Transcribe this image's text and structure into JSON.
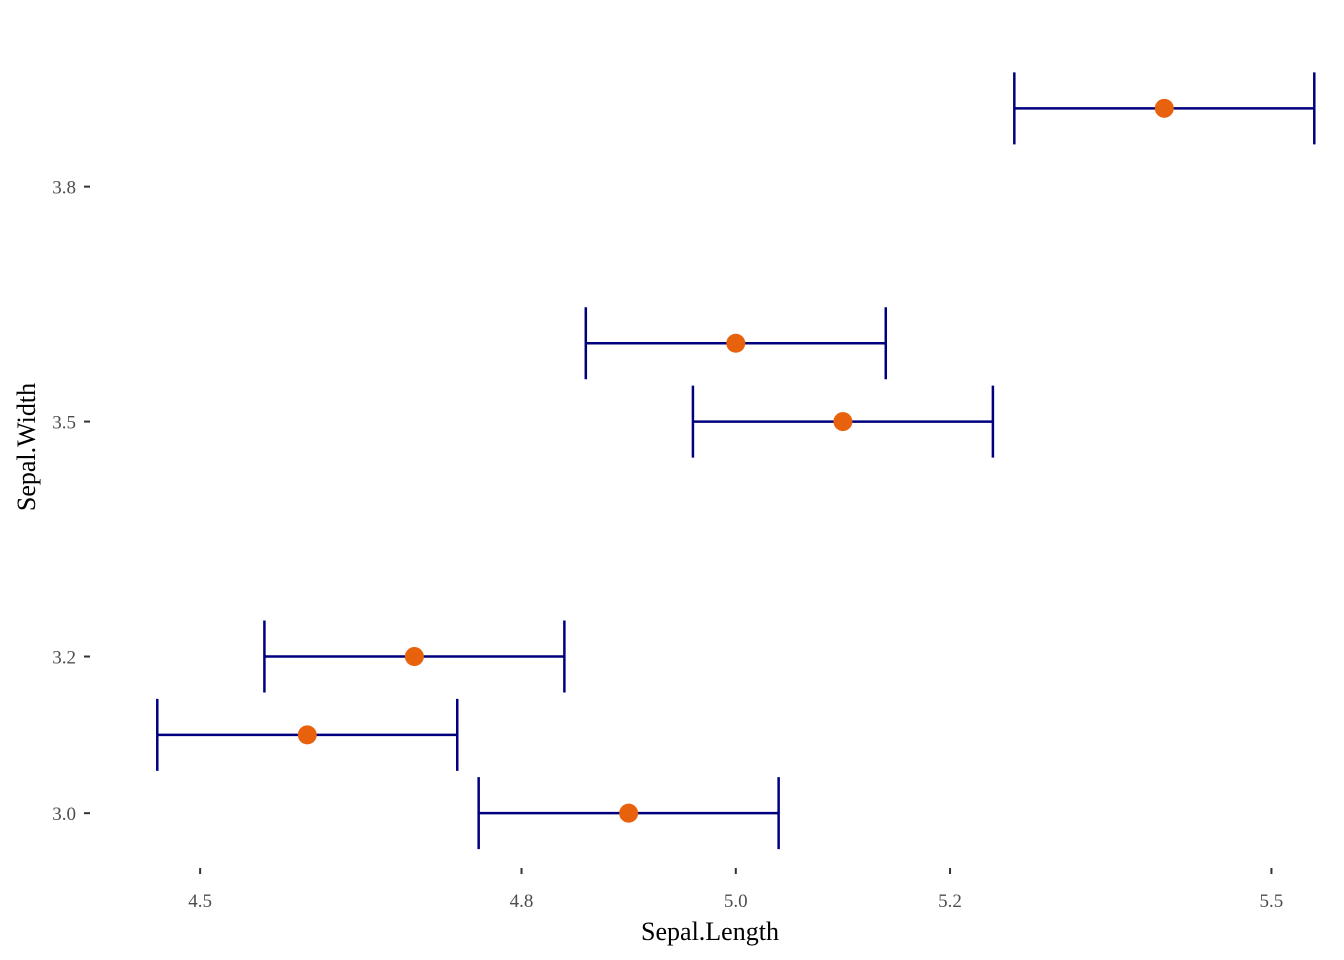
{
  "chart_data": {
    "type": "scatter",
    "xlabel": "Sepal.Length",
    "ylabel": "Sepal.Width",
    "xlim": [
      4.4,
      5.55
    ],
    "ylim": [
      2.93,
      4.0
    ],
    "x_ticks": [
      4.5,
      4.8,
      5.0,
      5.2,
      5.5
    ],
    "y_ticks": [
      3.0,
      3.2,
      3.5,
      3.8
    ],
    "x_tick_labels": [
      "4.5",
      "4.8",
      "5.0",
      "5.2",
      "5.5"
    ],
    "y_tick_labels": [
      "3.0",
      "3.2",
      "3.5",
      "3.8"
    ],
    "grid": false,
    "point_color": "#e8620e",
    "errorbar_color": "#00007f",
    "points": [
      {
        "x": 5.4,
        "y": 3.9,
        "xmin": 5.26,
        "xmax": 5.54
      },
      {
        "x": 5.0,
        "y": 3.6,
        "xmin": 4.86,
        "xmax": 5.14
      },
      {
        "x": 5.1,
        "y": 3.5,
        "xmin": 4.96,
        "xmax": 5.24
      },
      {
        "x": 4.7,
        "y": 3.2,
        "xmin": 4.56,
        "xmax": 4.84
      },
      {
        "x": 4.6,
        "y": 3.1,
        "xmin": 4.46,
        "xmax": 4.74
      },
      {
        "x": 4.9,
        "y": 3.0,
        "xmin": 4.76,
        "xmax": 5.04
      }
    ]
  }
}
